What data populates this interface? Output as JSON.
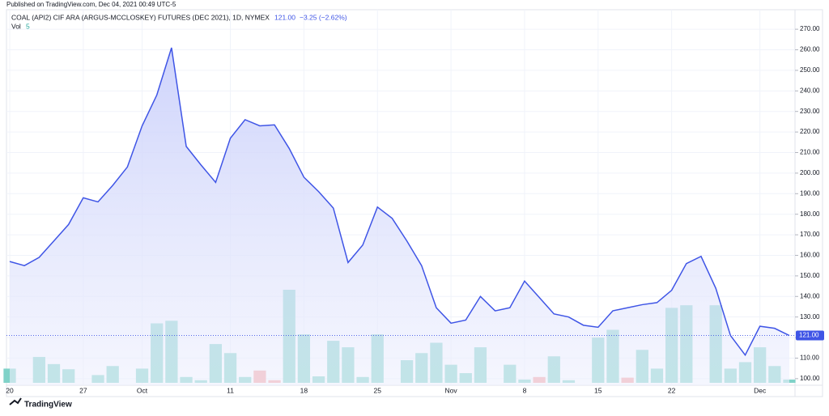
{
  "header": {
    "published": "Published on TradingView.com, Dec 04, 2021 00:49 UTC-5",
    "symbol": "COAL (API2) CIF ARA (ARGUS-MCCLOSKEY) FUTURES (DEC 2021), 1D, NYMEX",
    "last": "121.00",
    "change": "−3.25 (−2.62%)"
  },
  "chart_data": {
    "type": "line",
    "categories": [
      "20",
      null,
      null,
      null,
      null,
      "27",
      null,
      null,
      null,
      "Oct",
      null,
      null,
      null,
      null,
      null,
      "11",
      null,
      null,
      null,
      null,
      "18",
      null,
      null,
      null,
      null,
      "25",
      null,
      null,
      null,
      null,
      "Nov",
      null,
      null,
      null,
      null,
      "8",
      null,
      null,
      null,
      null,
      "15",
      null,
      null,
      null,
      null,
      "22",
      null,
      null,
      null,
      null,
      null,
      "Dec",
      null,
      null
    ],
    "series": [
      {
        "name": "COAL (API2) CIF ARA (ARGUS-MCCLOSKEY) FUTURES (DEC 2021)",
        "color": "#3f55e6",
        "values": [
          157,
          155,
          159,
          167,
          175,
          188,
          186,
          194,
          203,
          223,
          238,
          261,
          213,
          204,
          195.5,
          217,
          226,
          223,
          223.5,
          212,
          198,
          191,
          183,
          156.5,
          165,
          183.5,
          178,
          167,
          155,
          134.5,
          127,
          128.5,
          140,
          133,
          134.5,
          147.5,
          139.5,
          131.5,
          130,
          126,
          125,
          133,
          134.5,
          136,
          137,
          143,
          156,
          159.5,
          144,
          121,
          111.5,
          125.5,
          124.5,
          121
        ],
        "value_labels": {
          "53": "121.00"
        }
      }
    ],
    "volume": {
      "name": "Vol",
      "values": [
        22,
        0,
        40,
        29,
        21,
        0,
        12,
        26,
        0,
        22,
        92,
        96,
        9,
        4,
        60,
        46,
        9,
        19,
        4,
        144,
        75,
        10,
        65,
        55,
        9,
        75,
        0,
        35,
        46,
        62,
        28,
        15,
        55,
        0,
        28,
        5,
        9,
        41,
        4,
        0,
        70,
        82,
        8,
        51,
        22,
        116,
        120,
        0,
        120,
        22,
        32,
        55,
        26,
        5
      ],
      "colors": [
        "#80d2c8",
        "#80d2c8",
        "#80d2c8",
        "#80d2c8",
        "#80d2c8",
        "#80d2c8",
        "#80d2c8",
        "#80d2c8",
        "#80d2c8",
        "#80d2c8",
        "#80d2c8",
        "#80d2c8",
        "#80d2c8",
        "#80d2c8",
        "#80d2c8",
        "#80d2c8",
        "#80d2c8",
        "#f7a1a1",
        "#f7a1a1",
        "#80d2c8",
        "#80d2c8",
        "#80d2c8",
        "#80d2c8",
        "#80d2c8",
        "#80d2c8",
        "#80d2c8",
        "#80d2c8",
        "#80d2c8",
        "#80d2c8",
        "#80d2c8",
        "#80d2c8",
        "#80d2c8",
        "#80d2c8",
        "#80d2c8",
        "#80d2c8",
        "#80d2c8",
        "#f7a1a1",
        "#80d2c8",
        "#80d2c8",
        "#80d2c8",
        "#80d2c8",
        "#80d2c8",
        "#f7a1a1",
        "#80d2c8",
        "#80d2c8",
        "#80d2c8",
        "#80d2c8",
        "#80d2c8",
        "#80d2c8",
        "#80d2c8",
        "#80d2c8",
        "#80d2c8",
        "#80d2c8",
        "#80d2c8"
      ]
    },
    "ylim": [
      96.8,
      279.5
    ],
    "yticks": [
      {
        "value": 100,
        "label": "100.00"
      },
      {
        "value": 110,
        "label": "110.00"
      },
      {
        "value": 120,
        "label": "120.00"
      },
      {
        "value": 130,
        "label": "130.00"
      },
      {
        "value": 140,
        "label": "140.00"
      },
      {
        "value": 150,
        "label": "150.00"
      },
      {
        "value": 160,
        "label": "160.00"
      },
      {
        "value": 170,
        "label": "170.00"
      },
      {
        "value": 180,
        "label": "180.00"
      },
      {
        "value": 190,
        "label": "190.00"
      },
      {
        "value": 200,
        "label": "200.00"
      },
      {
        "value": 210,
        "label": "210.00"
      },
      {
        "value": 220,
        "label": "220.00"
      },
      {
        "value": 230,
        "label": "230.00"
      },
      {
        "value": 240,
        "label": "240.00"
      },
      {
        "value": 250,
        "label": "250.00"
      },
      {
        "value": 260,
        "label": "260.00"
      },
      {
        "value": 270,
        "label": "270.00"
      }
    ],
    "grid": true,
    "brand": "TradingView"
  }
}
